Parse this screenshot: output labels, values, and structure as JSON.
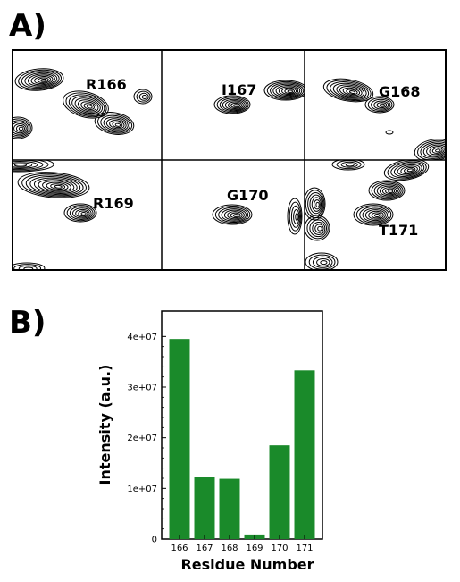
{
  "panels": {
    "a_label": "A)",
    "b_label": "B)"
  },
  "spectra": {
    "labels": [
      "R166",
      "I167",
      "G168",
      "R169",
      "G170",
      "T171"
    ]
  },
  "chart_data": {
    "type": "bar",
    "categories": [
      "166",
      "167",
      "168",
      "169",
      "170",
      "171"
    ],
    "values": [
      39500000,
      12200000,
      11900000,
      900000,
      18500000,
      33300000
    ],
    "xlabel": "Residue Number",
    "ylabel": "Intensity (a.u.)",
    "ylim": [
      0,
      45000000
    ],
    "yticks": [
      0,
      10000000,
      20000000,
      30000000,
      40000000
    ],
    "ytick_labels": [
      "0",
      "1e+07",
      "2e+07",
      "3e+07",
      "4e+07"
    ],
    "bar_color": "#1a8a2a",
    "grid": false,
    "legend": "none"
  }
}
